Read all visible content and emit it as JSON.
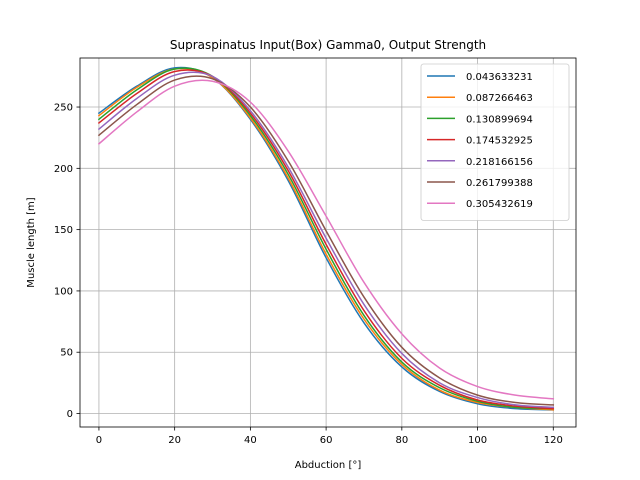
{
  "chart_data": {
    "type": "line",
    "title": "Supraspinatus Input(Box) Gamma0, Output Strength",
    "xlabel": "Abduction [°]",
    "ylabel": "Muscle length [m]",
    "xlim": [
      -5,
      126
    ],
    "ylim": [
      -11,
      290
    ],
    "x_ticks": [
      0,
      20,
      40,
      60,
      80,
      100,
      120
    ],
    "y_ticks": [
      0,
      50,
      100,
      150,
      200,
      250
    ],
    "grid": true,
    "legend_position": "top-right",
    "x": [
      0,
      10,
      20,
      30,
      40,
      50,
      60,
      70,
      80,
      90,
      100,
      110,
      120
    ],
    "series": [
      {
        "name": "0.043633231",
        "color": "#1f77b4",
        "values": [
          245,
          267,
          282,
          274,
          240,
          190,
          127,
          74,
          38,
          18,
          8,
          4,
          3
        ]
      },
      {
        "name": "0.087266463",
        "color": "#ff7f0e",
        "values": [
          243,
          266,
          281,
          274,
          241,
          192,
          130,
          77,
          40,
          19,
          9,
          5,
          3
        ]
      },
      {
        "name": "0.130899694",
        "color": "#2ca02c",
        "values": [
          240,
          264,
          281,
          275,
          243,
          195,
          134,
          80,
          42,
          21,
          10,
          5,
          4
        ]
      },
      {
        "name": "0.174532925",
        "color": "#d62728",
        "values": [
          237,
          261,
          279,
          275,
          245,
          198,
          138,
          84,
          45,
          23,
          11,
          6,
          4
        ]
      },
      {
        "name": "0.218166156",
        "color": "#9467bd",
        "values": [
          232,
          257,
          276,
          275,
          247,
          201,
          143,
          89,
          49,
          25,
          13,
          7,
          5
        ]
      },
      {
        "name": "0.261799388",
        "color": "#8c564b",
        "values": [
          227,
          252,
          272,
          273,
          250,
          206,
          149,
          95,
          54,
          29,
          15,
          9,
          7
        ]
      },
      {
        "name": "0.305432619",
        "color": "#e377c2",
        "values": [
          220,
          246,
          267,
          271,
          254,
          214,
          161,
          107,
          65,
          37,
          22,
          15,
          12
        ]
      }
    ]
  }
}
